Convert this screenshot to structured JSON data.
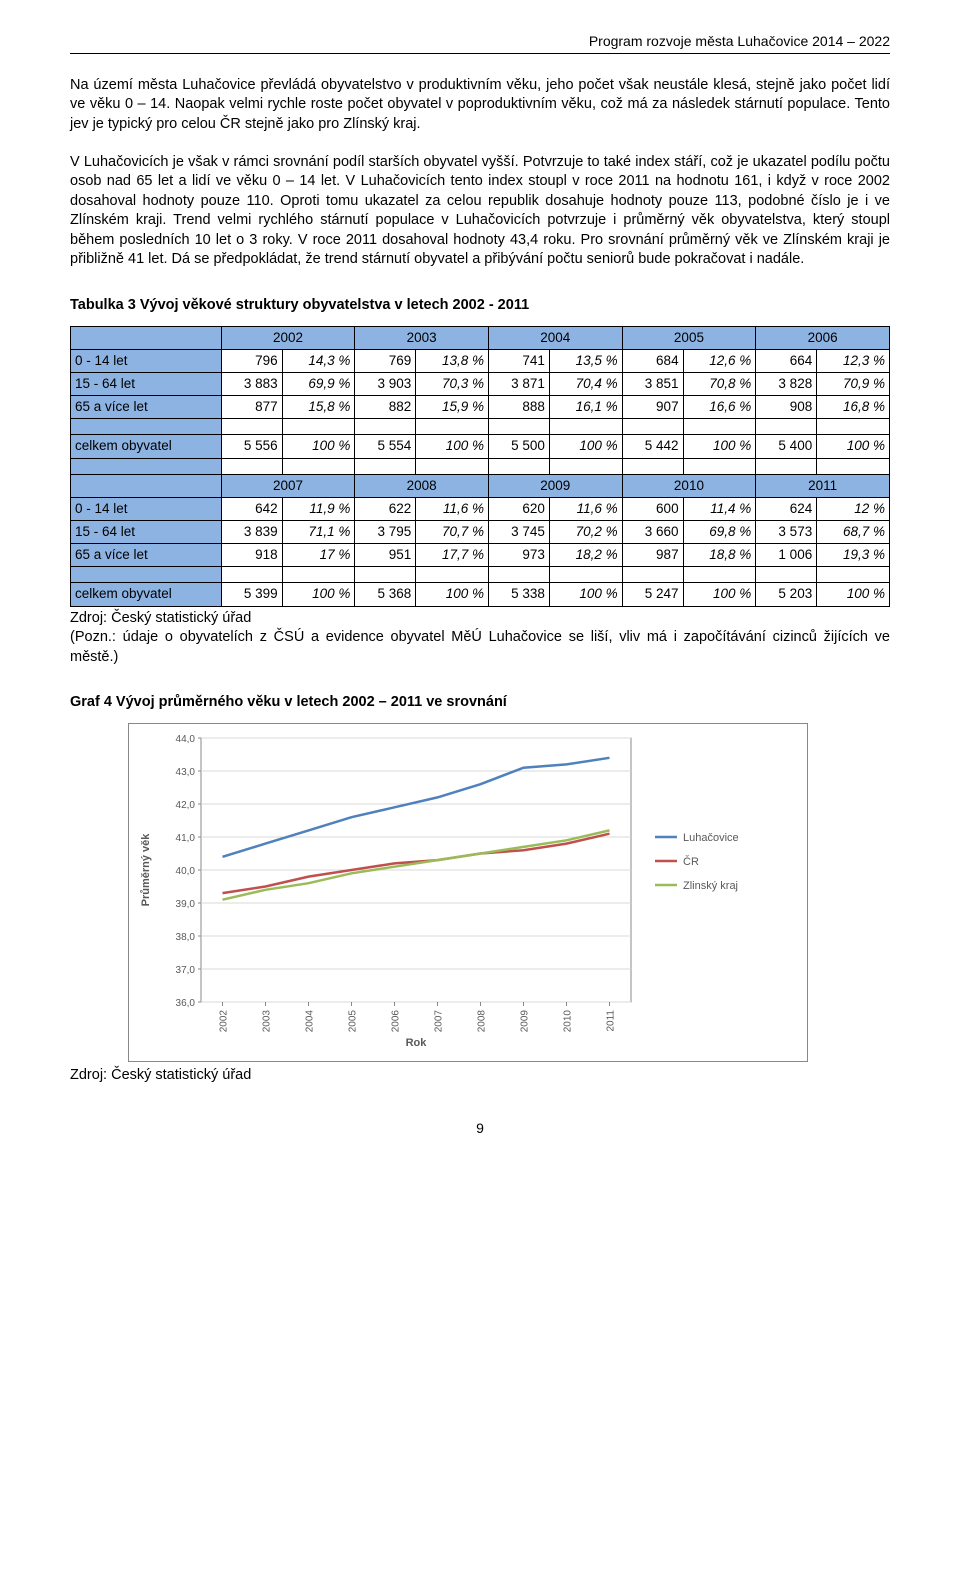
{
  "header": "Program rozvoje města Luhačovice 2014 – 2022",
  "para1": "Na území města Luhačovice převládá obyvatelstvo v produktivním věku, jeho počet však neustále klesá, stejně jako počet lidí ve věku 0 – 14. Naopak velmi rychle roste počet obyvatel v poproduktivním věku, což má za následek stárnutí populace. Tento jev je typický pro celou ČR stejně jako pro Zlínský kraj.",
  "para2": "V Luhačovicích je však v rámci srovnání podíl starších obyvatel vyšší. Potvrzuje to také index stáří, což je ukazatel podílu počtu osob nad 65 let a lidí ve věku 0 – 14 let. V Luhačovicích tento index stoupl v roce 2011 na hodnotu 161, i když v roce 2002 dosahoval hodnoty pouze 110. Oproti tomu ukazatel za celou republik dosahuje hodnoty pouze 113, podobné číslo je i ve Zlínském kraji. Trend velmi rychlého stárnutí populace v Luhačovicích potvrzuje i průměrný věk obyvatelstva, který stoupl během posledních 10 let o 3 roky. V roce 2011 dosahoval hodnoty 43,4 roku. Pro srovnání průměrný věk ve Zlínském kraji je přibližně 41 let. Dá se předpokládat, že trend stárnutí obyvatel a přibývání počtu seniorů bude pokračovat i nadále.",
  "table": {
    "title": "Tabulka 3 Vývoj věkové struktury obyvatelstva v letech 2002 - 2011",
    "headerBg": "#8db3e2",
    "yearsA": [
      "2002",
      "2003",
      "2004",
      "2005",
      "2006"
    ],
    "yearsB": [
      "2007",
      "2008",
      "2009",
      "2010",
      "2011"
    ],
    "rowLabels": [
      "0 - 14 let",
      "15 - 64 let",
      "65 a více let"
    ],
    "totalLabel": "celkem obyvatel",
    "blockA": {
      "age0": [
        [
          "796",
          "14,3 %"
        ],
        [
          "769",
          "13,8 %"
        ],
        [
          "741",
          "13,5 %"
        ],
        [
          "684",
          "12,6 %"
        ],
        [
          "664",
          "12,3 %"
        ]
      ],
      "age15": [
        [
          "3 883",
          "69,9 %"
        ],
        [
          "3 903",
          "70,3 %"
        ],
        [
          "3 871",
          "70,4 %"
        ],
        [
          "3 851",
          "70,8 %"
        ],
        [
          "3 828",
          "70,9 %"
        ]
      ],
      "age65": [
        [
          "877",
          "15,8 %"
        ],
        [
          "882",
          "15,9 %"
        ],
        [
          "888",
          "16,1 %"
        ],
        [
          "907",
          "16,6 %"
        ],
        [
          "908",
          "16,8 %"
        ]
      ],
      "total": [
        [
          "5 556",
          "100 %"
        ],
        [
          "5 554",
          "100 %"
        ],
        [
          "5 500",
          "100 %"
        ],
        [
          "5 442",
          "100 %"
        ],
        [
          "5 400",
          "100 %"
        ]
      ]
    },
    "blockB": {
      "age0": [
        [
          "642",
          "11,9 %"
        ],
        [
          "622",
          "11,6 %"
        ],
        [
          "620",
          "11,6 %"
        ],
        [
          "600",
          "11,4 %"
        ],
        [
          "624",
          "12 %"
        ]
      ],
      "age15": [
        [
          "3 839",
          "71,1 %"
        ],
        [
          "3 795",
          "70,7 %"
        ],
        [
          "3 745",
          "70,2 %"
        ],
        [
          "3 660",
          "69,8 %"
        ],
        [
          "3 573",
          "68,7 %"
        ]
      ],
      "age65": [
        [
          "918",
          "17 %"
        ],
        [
          "951",
          "17,7 %"
        ],
        [
          "973",
          "18,2 %"
        ],
        [
          "987",
          "18,8 %"
        ],
        [
          "1 006",
          "19,3 %"
        ]
      ],
      "total": [
        [
          "5 399",
          "100 %"
        ],
        [
          "5 368",
          "100 %"
        ],
        [
          "5 338",
          "100 %"
        ],
        [
          "5 247",
          "100 %"
        ],
        [
          "5 203",
          "100 %"
        ]
      ]
    }
  },
  "source1": "Zdroj: Český statistický úřad",
  "note": "(Pozn.: údaje o obyvatelích z ČSÚ a evidence obyvatel MěÚ Luhačovice se liší, vliv má i započítávání cizinců žijících ve městě.)",
  "chart": {
    "title": "Graf 4 Vývoj průměrného věku v letech 2002 – 2011 ve srovnání",
    "type": "line",
    "ylabel": "Průměrný věk",
    "xlabel": "Rok",
    "xticks": [
      "2002",
      "2003",
      "2004",
      "2005",
      "2006",
      "2007",
      "2008",
      "2009",
      "2010",
      "2011"
    ],
    "ylim": [
      36.0,
      44.0
    ],
    "yticks": [
      "36,0",
      "37,0",
      "38,0",
      "39,0",
      "40,0",
      "41,0",
      "42,0",
      "43,0",
      "44,0"
    ],
    "grid_color": "#d9d9d9",
    "background_color": "#ffffff",
    "plot_border_color": "#888888",
    "axis_fontsize": 10,
    "label_fontsize": 11,
    "line_width": 2.5,
    "series": [
      {
        "name": "Luhačovice",
        "color": "#4f81bd",
        "values": [
          40.4,
          40.8,
          41.2,
          41.6,
          41.9,
          42.2,
          42.6,
          43.1,
          43.2,
          43.4
        ]
      },
      {
        "name": "ČR",
        "color": "#c0504d",
        "values": [
          39.3,
          39.5,
          39.8,
          40.0,
          40.2,
          40.3,
          40.5,
          40.6,
          40.8,
          41.1
        ]
      },
      {
        "name": "Zlinský kraj",
        "color": "#9bbb59",
        "values": [
          39.1,
          39.4,
          39.6,
          39.9,
          40.1,
          40.3,
          40.5,
          40.7,
          40.9,
          41.2
        ]
      }
    ],
    "legend_pos": "right"
  },
  "source2": "Zdroj: Český statistický úřad",
  "pageNum": "9"
}
